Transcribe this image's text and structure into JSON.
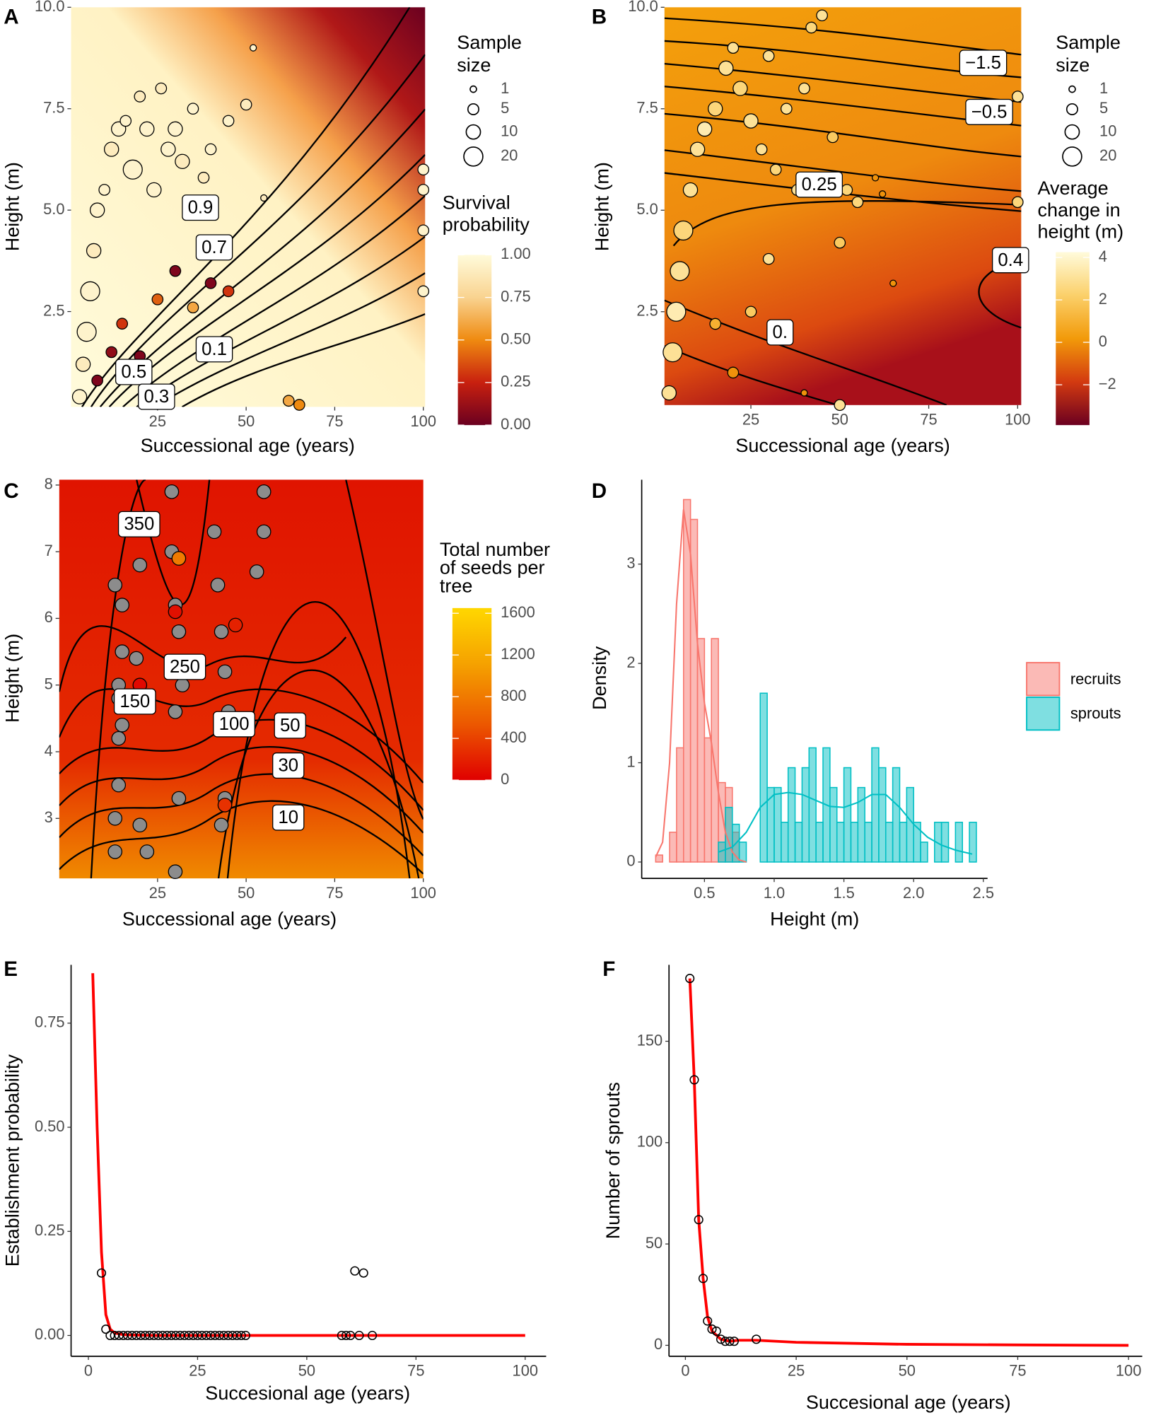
{
  "chart_data": [
    {
      "type": "scatter",
      "panel_label": "A",
      "x_label": "Successional age (years)",
      "y_label": "Height (m)",
      "xlim": [
        0.6,
        100.5
      ],
      "xticks": [
        25,
        50,
        75,
        100
      ],
      "ylim": [
        0.15,
        10
      ],
      "yticks": [
        2.5,
        {
          "value": 5,
          "label": "5.0"
        },
        7.5,
        {
          "value": 10,
          "label": "10.0"
        }
      ],
      "size_legend_title": [
        "Sample",
        "size"
      ],
      "size_legend": [
        1,
        5,
        10,
        20
      ],
      "colorbar_title": [
        "Survival",
        "probability"
      ],
      "colorbar_lim": [
        0,
        1
      ],
      "colorbar_ticks": [
        {
          "value": 0,
          "label": "0.00"
        },
        0.25,
        {
          "value": 0.5,
          "label": "0.50"
        },
        0.75,
        {
          "value": 1,
          "label": "1.00"
        }
      ],
      "colormap": [
        "#6b0020",
        "#c8200f",
        "#ef8a10",
        "#f9d390",
        "#fffbdb"
      ],
      "points": {
        "x": [
          3,
          4,
          5,
          6,
          7,
          8,
          10,
          12,
          14,
          16,
          18,
          20,
          22,
          24,
          26,
          28,
          30,
          32,
          35,
          38,
          40,
          45,
          50,
          52,
          8,
          12,
          15,
          20,
          25,
          30,
          35,
          40,
          45,
          55,
          62,
          65,
          100,
          100,
          100,
          100
        ],
        "y": [
          0.4,
          1.2,
          2.0,
          3.0,
          4.0,
          5.0,
          5.5,
          6.5,
          7.0,
          7.2,
          6.0,
          7.8,
          7.0,
          5.5,
          8.0,
          6.5,
          7.0,
          6.2,
          7.5,
          5.8,
          6.5,
          7.2,
          7.6,
          9.0,
          0.8,
          1.5,
          2.2,
          1.4,
          2.8,
          3.5,
          2.6,
          3.2,
          3.0,
          5.3,
          0.3,
          0.2,
          3.0,
          4.5,
          5.5,
          6.0
        ],
        "sizes": [
          10,
          10,
          20,
          20,
          10,
          10,
          5,
          10,
          10,
          5,
          20,
          5,
          10,
          10,
          5,
          10,
          10,
          10,
          5,
          5,
          5,
          5,
          5,
          1,
          5,
          5,
          5,
          5,
          5,
          5,
          5,
          5,
          5,
          1,
          5,
          5,
          5,
          5,
          5,
          5
        ],
        "color_values": [
          0.95,
          0.9,
          0.95,
          0.95,
          0.9,
          0.95,
          0.95,
          0.9,
          0.95,
          0.95,
          0.95,
          0.9,
          0.95,
          0.95,
          0.9,
          0.95,
          0.95,
          0.9,
          0.95,
          0.9,
          0.95,
          0.95,
          0.9,
          0.95,
          0.05,
          0.1,
          0.3,
          0.05,
          0.4,
          0.05,
          0.6,
          0.05,
          0.3,
          0.9,
          0.6,
          0.5,
          0.95,
          0.95,
          0.95,
          0.95
        ]
      },
      "contour_labels": [
        {
          "text": "0.9",
          "x": 37.1,
          "y": 5.04
        },
        {
          "text": "0.7",
          "x": 41,
          "y": 4.06
        },
        {
          "text": "0.1",
          "x": 41,
          "y": 1.55
        },
        {
          "text": "0.5",
          "x": 18.3,
          "y": 0.99
        },
        {
          "text": "0.3",
          "x": 24.7,
          "y": 0.38
        }
      ]
    },
    {
      "type": "scatter",
      "panel_label": "B",
      "x_label": "Successional age (years)",
      "y_label": "Height (m)",
      "xlim": [
        0.7,
        101
      ],
      "xticks": [
        25,
        50,
        75,
        100
      ],
      "ylim": [
        0.2,
        10
      ],
      "yticks": [
        2.5,
        {
          "value": 5,
          "label": "5.0"
        },
        7.5,
        {
          "value": 10,
          "label": "10.0"
        }
      ],
      "size_legend_title": [
        "Sample",
        "size"
      ],
      "size_legend": [
        1,
        5,
        10,
        20
      ],
      "colorbar_title": [
        "Average",
        "change in",
        "height (m)"
      ],
      "colorbar_lim": [
        -3.9,
        4.25
      ],
      "colorbar_ticks": [
        {
          "value": -2,
          "label": "−2"
        },
        0,
        2,
        4
      ],
      "colormap": [
        "#6b0020",
        "#d33a10",
        "#f29a0a",
        "#fbd06a",
        "#fffbdb"
      ],
      "points": {
        "x": [
          2,
          3,
          4,
          5,
          6,
          8,
          10,
          12,
          15,
          18,
          20,
          22,
          25,
          28,
          30,
          32,
          35,
          38,
          40,
          42,
          45,
          48,
          50,
          52,
          55,
          60,
          62,
          65,
          100,
          100,
          15,
          20,
          25,
          30,
          40,
          50
        ],
        "y": [
          0.5,
          1.5,
          2.5,
          3.5,
          4.5,
          5.5,
          6.5,
          7.0,
          7.5,
          8.5,
          9.0,
          8.0,
          7.2,
          6.5,
          8.8,
          6.0,
          7.5,
          5.5,
          8.0,
          9.5,
          9.8,
          6.8,
          4.2,
          5.5,
          5.2,
          5.8,
          5.4,
          3.2,
          5.2,
          7.8,
          2.2,
          1.0,
          2.5,
          3.8,
          0.5,
          0.2
        ],
        "sizes": [
          10,
          20,
          20,
          20,
          20,
          10,
          10,
          10,
          10,
          10,
          5,
          10,
          10,
          5,
          5,
          5,
          5,
          5,
          5,
          5,
          5,
          5,
          5,
          5,
          5,
          1,
          1,
          1,
          5,
          5,
          5,
          5,
          5,
          5,
          1,
          5
        ],
        "color_values": [
          3,
          3,
          3.5,
          3,
          2.5,
          3,
          3,
          3.5,
          2.5,
          3,
          3,
          2.5,
          3,
          3,
          3,
          2.5,
          3,
          3,
          3,
          2.5,
          3,
          2,
          2,
          2.5,
          2.5,
          0,
          0,
          0,
          2.5,
          3,
          1,
          0,
          2,
          3,
          0,
          3
        ]
      },
      "contour_labels": [
        {
          "text": "−1.5",
          "x": 90.3,
          "y": 8.61
        },
        {
          "text": "−0.5",
          "x": 92,
          "y": 7.4
        },
        {
          "text": "0.25",
          "x": 44.2,
          "y": 5.61
        },
        {
          "text": "0.4",
          "x": 98,
          "y": 3.75
        },
        {
          "text": "0.",
          "x": 33.2,
          "y": 1.97
        }
      ]
    },
    {
      "type": "scatter",
      "panel_label": "C",
      "x_label": "Successional age (years)",
      "y_label": "Height (m)",
      "xlim": [
        -2.75,
        100
      ],
      "xticks": [
        25,
        50,
        75,
        100
      ],
      "ylim": [
        2.1,
        8.08
      ],
      "yticks": [
        3,
        4,
        5,
        6,
        7,
        8
      ],
      "colorbar_title": [
        "Total number",
        "of seeds per",
        "tree"
      ],
      "colorbar_lim": [
        0,
        1650
      ],
      "colorbar_ticks": [
        0,
        400,
        800,
        1200,
        1600
      ],
      "colormap": [
        "#e00000",
        "#ec5a00",
        "#f5a000",
        "#ffd700"
      ],
      "na_color": "#8c8c8c",
      "points": {
        "x": [
          13,
          13,
          14,
          14,
          14,
          15,
          15,
          13,
          14,
          15,
          19,
          20,
          20,
          21,
          22,
          29,
          29,
          30,
          30,
          31,
          30,
          31,
          32,
          41,
          42,
          43,
          44,
          45,
          44,
          43,
          55,
          55,
          53,
          20,
          30,
          44,
          31,
          47
        ],
        "y": [
          2.5,
          3.0,
          3.5,
          4.2,
          4.8,
          5.5,
          6.2,
          6.5,
          5.0,
          4.4,
          5.4,
          6.8,
          2.9,
          4.8,
          2.5,
          7.9,
          7.0,
          6.2,
          4.6,
          3.3,
          2.2,
          5.8,
          5.0,
          7.3,
          6.5,
          5.8,
          5.2,
          4.6,
          3.3,
          2.9,
          7.9,
          7.3,
          6.7,
          5.0,
          6.1,
          3.2,
          6.9,
          5.9
        ],
        "color_values": [
          null,
          null,
          null,
          null,
          null,
          null,
          null,
          null,
          null,
          null,
          null,
          null,
          null,
          null,
          null,
          null,
          null,
          null,
          null,
          null,
          null,
          null,
          null,
          null,
          null,
          null,
          null,
          null,
          null,
          null,
          null,
          null,
          null,
          50,
          100,
          300,
          800,
          200
        ]
      },
      "contour_labels": [
        {
          "text": "350",
          "x": 19.8,
          "y": 7.4
        },
        {
          "text": "250",
          "x": 32.7,
          "y": 5.26
        },
        {
          "text": "150",
          "x": 18.6,
          "y": 4.74
        },
        {
          "text": "100",
          "x": 46.6,
          "y": 4.4
        },
        {
          "text": "50",
          "x": 62.4,
          "y": 4.38
        },
        {
          "text": "30",
          "x": 61.9,
          "y": 3.78
        },
        {
          "text": "10",
          "x": 61.9,
          "y": 3.0
        }
      ]
    },
    {
      "type": "histogram",
      "panel_label": "D",
      "x_label": "Height (m)",
      "y_label": "Density",
      "xlim": [
        0.05,
        2.53
      ],
      "xticks": [
        0.5,
        {
          "value": 1,
          "label": "1.0"
        },
        1.5,
        {
          "value": 2,
          "label": "2.0"
        },
        2.5
      ],
      "ylim": [
        -0.165,
        3.85
      ],
      "yticks": [
        0,
        1,
        2,
        3
      ],
      "series": [
        {
          "name": "recruits",
          "color": "#f8766d",
          "bins": [
            0.15,
            0.2,
            0.25,
            0.3,
            0.35,
            0.4,
            0.45,
            0.5,
            0.55,
            0.6,
            0.65,
            0.7,
            0.75
          ],
          "values": [
            0.07,
            0,
            0.3,
            1.15,
            3.65,
            3.45,
            2.25,
            1.25,
            2.25,
            0.8,
            0.75,
            0.3
          ],
          "density_x": [
            0.15,
            0.2,
            0.25,
            0.3,
            0.35,
            0.4,
            0.45,
            0.5,
            0.55,
            0.6,
            0.65,
            0.7,
            0.75,
            0.8
          ],
          "density": [
            0.05,
            0.2,
            1.0,
            2.6,
            3.55,
            3.1,
            2.2,
            1.6,
            1.2,
            0.7,
            0.3,
            0.1,
            0.02,
            0
          ]
        },
        {
          "name": "sprouts",
          "color": "#00bfc4",
          "bins": [
            0.6,
            0.65,
            0.7,
            0.75,
            0.8,
            0.85,
            0.9,
            0.95,
            1.0,
            1.05,
            1.1,
            1.15,
            1.2,
            1.25,
            1.3,
            1.35,
            1.4,
            1.45,
            1.5,
            1.55,
            1.6,
            1.65,
            1.7,
            1.75,
            1.8,
            1.85,
            1.9,
            1.95,
            2.0,
            2.05,
            2.1,
            2.15,
            2.2,
            2.25,
            2.3,
            2.35,
            2.4,
            2.45
          ],
          "values": [
            0.2,
            0.55,
            0.38,
            0.2,
            0,
            0,
            1.7,
            0.75,
            0.75,
            0.4,
            0.95,
            0.4,
            0.95,
            1.15,
            0.4,
            1.15,
            0.75,
            0.4,
            0.95,
            0.4,
            0.75,
            0.4,
            1.15,
            0.95,
            0.4,
            0.95,
            0.4,
            0.75,
            0.4,
            0.2,
            0,
            0.4,
            0.4,
            0,
            0.4,
            0,
            0.4
          ],
          "density_x": [
            0.6,
            0.7,
            0.8,
            0.9,
            1.0,
            1.1,
            1.2,
            1.3,
            1.4,
            1.5,
            1.6,
            1.7,
            1.8,
            1.9,
            2.0,
            2.1,
            2.2,
            2.3,
            2.42
          ],
          "density": [
            0.1,
            0.15,
            0.3,
            0.55,
            0.68,
            0.7,
            0.68,
            0.62,
            0.56,
            0.55,
            0.6,
            0.68,
            0.68,
            0.55,
            0.38,
            0.25,
            0.17,
            0.12,
            0.08
          ]
        }
      ]
    },
    {
      "type": "line",
      "panel_label": "E",
      "x_label": "Succesional age (years)",
      "y_label": "Establishment probability",
      "xlim": [
        -3.96,
        104.8
      ],
      "xticks": [
        0,
        25,
        50,
        75,
        100
      ],
      "ylim": [
        -0.05,
        0.89
      ],
      "yticks": [
        {
          "value": 0,
          "label": "0.00"
        },
        0.25,
        {
          "value": 0.5,
          "label": "0.50"
        },
        0.75
      ],
      "line": {
        "color": "#ff0000",
        "x": [
          1,
          2,
          3,
          4,
          5,
          6,
          8,
          10,
          15,
          20,
          30,
          50,
          75,
          100
        ],
        "values": [
          0.87,
          0.5,
          0.2,
          0.05,
          0.015,
          0.006,
          0.002,
          0.001,
          0,
          0,
          0,
          0,
          0,
          0
        ]
      },
      "points": {
        "x": [
          3,
          4,
          5,
          6,
          7,
          8,
          9,
          10,
          11,
          12,
          13,
          14,
          15,
          16,
          17,
          18,
          19,
          20,
          21,
          22,
          23,
          24,
          25,
          26,
          27,
          28,
          29,
          30,
          31,
          32,
          33,
          34,
          35,
          36,
          58,
          59,
          60,
          61,
          62,
          63,
          65
        ],
        "y": [
          0.15,
          0.015,
          0,
          0,
          0,
          0,
          0,
          0,
          0,
          0,
          0,
          0,
          0,
          0,
          0,
          0,
          0,
          0,
          0,
          0,
          0,
          0,
          0,
          0,
          0,
          0,
          0,
          0,
          0,
          0,
          0,
          0,
          0,
          0,
          0,
          0,
          0,
          0.155,
          0,
          0.15,
          0
        ]
      }
    },
    {
      "type": "line",
      "panel_label": "F",
      "x_label": "Succesional age (years)",
      "y_label": "Number of sprouts",
      "xlim": [
        -3.7,
        103.1
      ],
      "xticks": [
        0,
        25,
        50,
        75,
        100
      ],
      "ylim": [
        -5.4,
        187.7
      ],
      "yticks": [
        0,
        50,
        100,
        150
      ],
      "line": {
        "color": "#ff0000",
        "x": [
          1,
          2,
          3,
          4,
          5,
          6,
          8,
          10,
          12,
          16,
          25,
          50,
          75,
          100
        ],
        "values": [
          181,
          131,
          62,
          33,
          14,
          7,
          3,
          2,
          2.5,
          2.5,
          1.5,
          0.5,
          0.2,
          0
        ]
      },
      "points": {
        "x": [
          1,
          2,
          3,
          4,
          5,
          6,
          7,
          8,
          9,
          10,
          11,
          16
        ],
        "y": [
          181,
          131,
          62,
          33,
          12,
          8,
          7,
          3,
          2,
          2,
          2,
          3
        ]
      }
    }
  ]
}
